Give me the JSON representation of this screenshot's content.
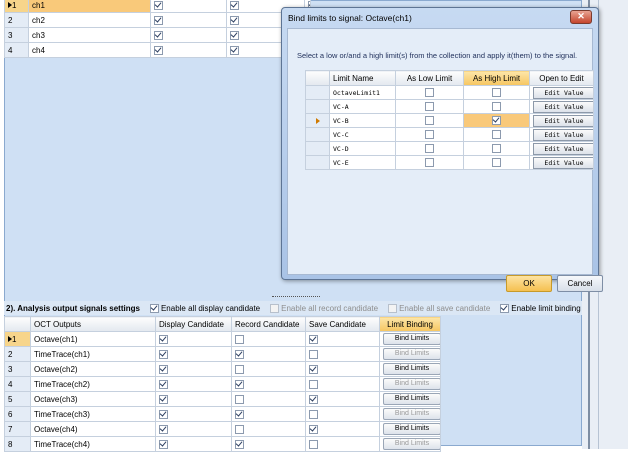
{
  "top_table": {
    "rows": [
      {
        "num": "1",
        "name": "ch1",
        "c1": true,
        "c2": true,
        "c3": true,
        "selected": true
      },
      {
        "num": "2",
        "name": "ch2",
        "c1": true,
        "c2": true,
        "c3": true,
        "selected": false
      },
      {
        "num": "3",
        "name": "ch3",
        "c1": true,
        "c2": true,
        "c3": true,
        "selected": false
      },
      {
        "num": "4",
        "name": "ch4",
        "c1": true,
        "c2": true,
        "c3": true,
        "selected": false
      }
    ]
  },
  "section2": {
    "title": "2). Analysis output signals settings",
    "options": [
      {
        "label": "Enable all display candidate",
        "checked": true,
        "enabled": true
      },
      {
        "label": "Enable all record candidate",
        "checked": false,
        "enabled": false
      },
      {
        "label": "Enable all save candidate",
        "checked": false,
        "enabled": false
      },
      {
        "label": "Enable limit binding",
        "checked": true,
        "enabled": true
      }
    ],
    "headers": [
      "OCT Outputs",
      "Display Candidate",
      "Record Candidate",
      "Save Candidate",
      "Limit Binding"
    ],
    "rows": [
      {
        "num": "1",
        "name": "Octave(ch1)",
        "display": true,
        "record": false,
        "save": true,
        "limit": "Bind Limits",
        "limit_enabled": true,
        "selected": true
      },
      {
        "num": "2",
        "name": "TimeTrace(ch1)",
        "display": true,
        "record": true,
        "save": false,
        "limit": "Bind Limits",
        "limit_enabled": false,
        "selected": false
      },
      {
        "num": "3",
        "name": "Octave(ch2)",
        "display": true,
        "record": false,
        "save": true,
        "limit": "Bind Limits",
        "limit_enabled": true,
        "selected": false
      },
      {
        "num": "4",
        "name": "TimeTrace(ch2)",
        "display": true,
        "record": true,
        "save": false,
        "limit": "Bind Limits",
        "limit_enabled": false,
        "selected": false
      },
      {
        "num": "5",
        "name": "Octave(ch3)",
        "display": true,
        "record": false,
        "save": true,
        "limit": "Bind Limits",
        "limit_enabled": true,
        "selected": false
      },
      {
        "num": "6",
        "name": "TimeTrace(ch3)",
        "display": true,
        "record": true,
        "save": false,
        "limit": "Bind Limits",
        "limit_enabled": false,
        "selected": false
      },
      {
        "num": "7",
        "name": "Octave(ch4)",
        "display": true,
        "record": false,
        "save": true,
        "limit": "Bind Limits",
        "limit_enabled": true,
        "selected": false
      },
      {
        "num": "8",
        "name": "TimeTrace(ch4)",
        "display": true,
        "record": true,
        "save": false,
        "limit": "Bind Limits",
        "limit_enabled": false,
        "selected": false
      }
    ]
  },
  "dialog": {
    "title": "Bind limits to signal: Octave(ch1)",
    "close_label": "✕",
    "instruction": "Select a low or/and a high limit(s) from the collection and apply it(them) to the signal.",
    "headers": [
      "Limit Name",
      "As Low Limit",
      "As High Limit",
      "Open to Edit"
    ],
    "rows": [
      {
        "name": "OctaveLimit1",
        "low": false,
        "high": false,
        "edit": "Edit Value",
        "current": false
      },
      {
        "name": "VC-A",
        "low": false,
        "high": false,
        "edit": "Edit Value",
        "current": false
      },
      {
        "name": "VC-B",
        "low": false,
        "high": true,
        "edit": "Edit Value",
        "current": true
      },
      {
        "name": "VC-C",
        "low": false,
        "high": false,
        "edit": "Edit Value",
        "current": false
      },
      {
        "name": "VC-D",
        "low": false,
        "high": false,
        "edit": "Edit Value",
        "current": false
      },
      {
        "name": "VC-E",
        "low": false,
        "high": false,
        "edit": "Edit Value",
        "current": false
      }
    ],
    "ok_label": "OK",
    "cancel_label": "Cancel"
  }
}
